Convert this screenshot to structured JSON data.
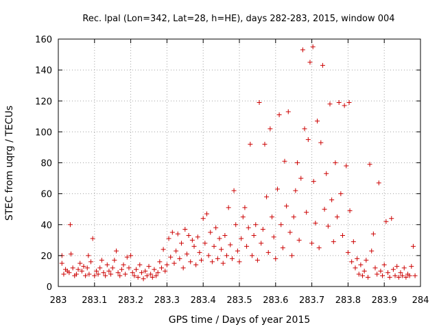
{
  "chart_data": {
    "type": "scatter",
    "title": "Rec. lpal (Lon=342, Lat=28, h=HE), days 282-283, 2015, window 004",
    "xlabel": "GPS time / Days of year 2015",
    "ylabel": "STEC from uqrg / TECUs",
    "xlim": [
      283,
      284
    ],
    "ylim": [
      0,
      160
    ],
    "xticks": [
      "283",
      "283.1",
      "283.2",
      "283.3",
      "283.4",
      "283.5",
      "283.6",
      "283.7",
      "283.8",
      "283.9",
      "284"
    ],
    "yticks": [
      "0",
      "20",
      "40",
      "60",
      "80",
      "100",
      "120",
      "140",
      "160"
    ],
    "grid": true,
    "marker": "+",
    "color": "#cc0000",
    "series": [
      {
        "points": [
          [
            283.01,
            20
          ],
          [
            283.01,
            15
          ],
          [
            283.015,
            8
          ],
          [
            283.02,
            11
          ],
          [
            283.025,
            10
          ],
          [
            283.03,
            9
          ],
          [
            283.033,
            40
          ],
          [
            283.035,
            21
          ],
          [
            283.04,
            12
          ],
          [
            283.045,
            7
          ],
          [
            283.05,
            8
          ],
          [
            283.055,
            11
          ],
          [
            283.06,
            15
          ],
          [
            283.065,
            10
          ],
          [
            283.07,
            13
          ],
          [
            283.075,
            7
          ],
          [
            283.08,
            12
          ],
          [
            283.083,
            20
          ],
          [
            283.085,
            8
          ],
          [
            283.09,
            16
          ],
          [
            283.095,
            31
          ],
          [
            283.1,
            7
          ],
          [
            283.105,
            10
          ],
          [
            283.11,
            8
          ],
          [
            283.115,
            12
          ],
          [
            283.12,
            17
          ],
          [
            283.125,
            9
          ],
          [
            283.13,
            7
          ],
          [
            283.135,
            14
          ],
          [
            283.14,
            10
          ],
          [
            283.145,
            8
          ],
          [
            283.15,
            12
          ],
          [
            283.155,
            17
          ],
          [
            283.16,
            23
          ],
          [
            283.165,
            9
          ],
          [
            283.17,
            7
          ],
          [
            283.175,
            11
          ],
          [
            283.18,
            14
          ],
          [
            283.185,
            8
          ],
          [
            283.19,
            19
          ],
          [
            283.195,
            12
          ],
          [
            283.2,
            20
          ],
          [
            283.205,
            9
          ],
          [
            283.21,
            7
          ],
          [
            283.215,
            11
          ],
          [
            283.22,
            6
          ],
          [
            283.225,
            14
          ],
          [
            283.23,
            9
          ],
          [
            283.235,
            5
          ],
          [
            283.24,
            10
          ],
          [
            283.245,
            7
          ],
          [
            283.25,
            13
          ],
          [
            283.255,
            8
          ],
          [
            283.26,
            6
          ],
          [
            283.265,
            11
          ],
          [
            283.27,
            7
          ],
          [
            283.275,
            9
          ],
          [
            283.28,
            16
          ],
          [
            283.285,
            12
          ],
          [
            283.29,
            24
          ],
          [
            283.295,
            10
          ],
          [
            283.3,
            14
          ],
          [
            283.305,
            31
          ],
          [
            283.31,
            19
          ],
          [
            283.315,
            35
          ],
          [
            283.32,
            15
          ],
          [
            283.325,
            23
          ],
          [
            283.33,
            34
          ],
          [
            283.335,
            18
          ],
          [
            283.34,
            28
          ],
          [
            283.345,
            12
          ],
          [
            283.35,
            37
          ],
          [
            283.355,
            21
          ],
          [
            283.36,
            33
          ],
          [
            283.365,
            16
          ],
          [
            283.37,
            30
          ],
          [
            283.375,
            26
          ],
          [
            283.38,
            14
          ],
          [
            283.385,
            32
          ],
          [
            283.39,
            22
          ],
          [
            283.395,
            17
          ],
          [
            283.4,
            44
          ],
          [
            283.405,
            28
          ],
          [
            283.41,
            47
          ],
          [
            283.415,
            20
          ],
          [
            283.42,
            35
          ],
          [
            283.425,
            16
          ],
          [
            283.43,
            26
          ],
          [
            283.435,
            38
          ],
          [
            283.44,
            18
          ],
          [
            283.445,
            31
          ],
          [
            283.45,
            24
          ],
          [
            283.455,
            15
          ],
          [
            283.46,
            33
          ],
          [
            283.465,
            20
          ],
          [
            283.47,
            51
          ],
          [
            283.475,
            27
          ],
          [
            283.48,
            18
          ],
          [
            283.485,
            62
          ],
          [
            283.49,
            40
          ],
          [
            283.495,
            23
          ],
          [
            283.5,
            16
          ],
          [
            283.505,
            31
          ],
          [
            283.51,
            45
          ],
          [
            283.515,
            51
          ],
          [
            283.52,
            26
          ],
          [
            283.525,
            38
          ],
          [
            283.53,
            92
          ],
          [
            283.535,
            20
          ],
          [
            283.54,
            33
          ],
          [
            283.545,
            40
          ],
          [
            283.55,
            17
          ],
          [
            283.555,
            119
          ],
          [
            283.56,
            28
          ],
          [
            283.565,
            37
          ],
          [
            283.57,
            92
          ],
          [
            283.575,
            58
          ],
          [
            283.58,
            22
          ],
          [
            283.585,
            102
          ],
          [
            283.59,
            45
          ],
          [
            283.595,
            32
          ],
          [
            283.6,
            18
          ],
          [
            283.605,
            63
          ],
          [
            283.61,
            111
          ],
          [
            283.615,
            40
          ],
          [
            283.62,
            25
          ],
          [
            283.625,
            81
          ],
          [
            283.63,
            52
          ],
          [
            283.635,
            113
          ],
          [
            283.64,
            35
          ],
          [
            283.645,
            20
          ],
          [
            283.65,
            45
          ],
          [
            283.655,
            62
          ],
          [
            283.66,
            80
          ],
          [
            283.665,
            30
          ],
          [
            283.67,
            70
          ],
          [
            283.675,
            153
          ],
          [
            283.68,
            102
          ],
          [
            283.685,
            48
          ],
          [
            283.69,
            95
          ],
          [
            283.695,
            145
          ],
          [
            283.7,
            28
          ],
          [
            283.703,
            155
          ],
          [
            283.705,
            68
          ],
          [
            283.71,
            41
          ],
          [
            283.715,
            107
          ],
          [
            283.72,
            25
          ],
          [
            283.725,
            93
          ],
          [
            283.73,
            143
          ],
          [
            283.735,
            50
          ],
          [
            283.74,
            73
          ],
          [
            283.745,
            39
          ],
          [
            283.75,
            118
          ],
          [
            283.755,
            56
          ],
          [
            283.76,
            29
          ],
          [
            283.765,
            80
          ],
          [
            283.77,
            45
          ],
          [
            283.775,
            119
          ],
          [
            283.78,
            60
          ],
          [
            283.785,
            33
          ],
          [
            283.79,
            117
          ],
          [
            283.795,
            78
          ],
          [
            283.8,
            22
          ],
          [
            283.803,
            119
          ],
          [
            283.805,
            49
          ],
          [
            283.81,
            16
          ],
          [
            283.815,
            29
          ],
          [
            283.82,
            12
          ],
          [
            283.825,
            18
          ],
          [
            283.83,
            8
          ],
          [
            283.835,
            14
          ],
          [
            283.84,
            7
          ],
          [
            283.845,
            10
          ],
          [
            283.85,
            17
          ],
          [
            283.855,
            6
          ],
          [
            283.86,
            79
          ],
          [
            283.865,
            23
          ],
          [
            283.87,
            34
          ],
          [
            283.875,
            12
          ],
          [
            283.88,
            8
          ],
          [
            283.885,
            67
          ],
          [
            283.89,
            10
          ],
          [
            283.895,
            7
          ],
          [
            283.9,
            14
          ],
          [
            283.905,
            42
          ],
          [
            283.91,
            9
          ],
          [
            283.915,
            6
          ],
          [
            283.92,
            44
          ],
          [
            283.925,
            11
          ],
          [
            283.93,
            7
          ],
          [
            283.935,
            13
          ],
          [
            283.94,
            6
          ],
          [
            283.945,
            9
          ],
          [
            283.95,
            7
          ],
          [
            283.955,
            12
          ],
          [
            283.96,
            6
          ],
          [
            283.965,
            8
          ],
          [
            283.97,
            7
          ],
          [
            283.975,
            13
          ],
          [
            283.98,
            26
          ],
          [
            283.985,
            7
          ]
        ]
      }
    ]
  }
}
